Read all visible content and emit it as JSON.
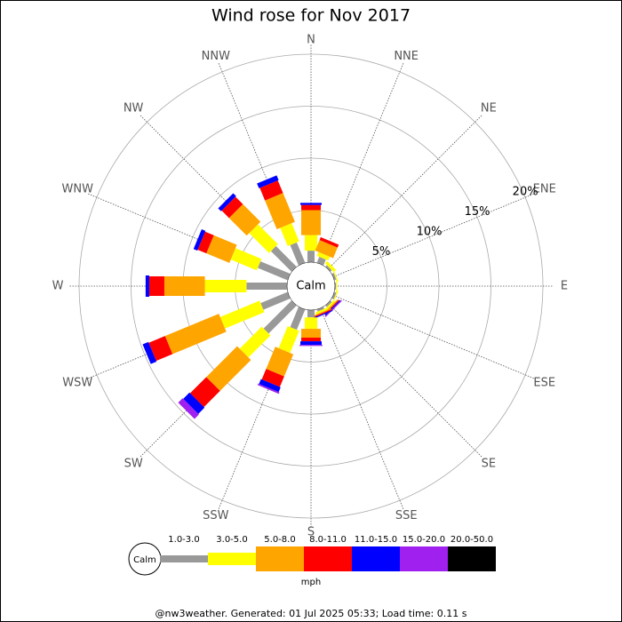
{
  "chart_data": {
    "type": "windrose",
    "title": "Wind rose for Nov 2017",
    "categories": [
      "N",
      "NNE",
      "NE",
      "ENE",
      "E",
      "ESE",
      "SE",
      "SSE",
      "S",
      "SSW",
      "SW",
      "WSW",
      "W",
      "WNW",
      "NW",
      "NNW"
    ],
    "series": [
      {
        "name": "1.0-3.0",
        "color": "#999999",
        "values": [
          1.1,
          0.6,
          0.2,
          0.2,
          0.1,
          0.2,
          0.2,
          0.2,
          0.7,
          2.1,
          3.8,
          2.8,
          3.9,
          3.1,
          2.8,
          2.1
        ]
      },
      {
        "name": "3.0-5.0",
        "color": "#ffff00",
        "values": [
          1.5,
          0.4,
          0.3,
          0.1,
          0.1,
          0.1,
          0.2,
          0.2,
          1.1,
          2.3,
          3.0,
          4.1,
          4.0,
          2.7,
          2.7,
          1.9
        ]
      },
      {
        "name": "5.0-8.0",
        "color": "#ffa500",
        "values": [
          2.4,
          1.1,
          0,
          0,
          0,
          0,
          0.1,
          0.1,
          0.85,
          2.3,
          4.2,
          5.6,
          3.9,
          2.4,
          2.4,
          3.0
        ]
      },
      {
        "name": "8.0-11.0",
        "color": "#ff0000",
        "values": [
          0.5,
          0.3,
          0,
          0,
          0,
          0,
          0.1,
          0.1,
          0.35,
          1.1,
          2.2,
          1.7,
          1.45,
          0.9,
          1.0,
          1.3
        ]
      },
      {
        "name": "11.0-15.0",
        "color": "#0000ff",
        "values": [
          0.2,
          0,
          0,
          0,
          0,
          0,
          0.1,
          0.1,
          0.35,
          0.5,
          0.85,
          0.6,
          0.35,
          0.4,
          0.4,
          0.5
        ]
      },
      {
        "name": "15.0-20.0",
        "color": "#a020f0",
        "values": [
          0,
          0,
          0,
          0,
          0,
          0,
          0.1,
          0,
          0.1,
          0.15,
          0.6,
          0,
          0,
          0,
          0,
          0
        ]
      },
      {
        "name": "20.0-50.0",
        "color": "#000000",
        "values": [
          0,
          0,
          0,
          0,
          0,
          0,
          0,
          0,
          0,
          0,
          0,
          0,
          0,
          0,
          0,
          0
        ]
      }
    ],
    "rlim": [
      0,
      20
    ],
    "rticks": [
      {
        "value": 5,
        "label": "5%"
      },
      {
        "value": 10,
        "label": "10%"
      },
      {
        "value": 15,
        "label": "15%"
      },
      {
        "value": 20,
        "label": "20%"
      }
    ],
    "center_label": "Calm",
    "unit": "mph",
    "footer": "@nw3weather. Generated: 01 Jul 2025 05:33; Load time: 0.11 s"
  }
}
